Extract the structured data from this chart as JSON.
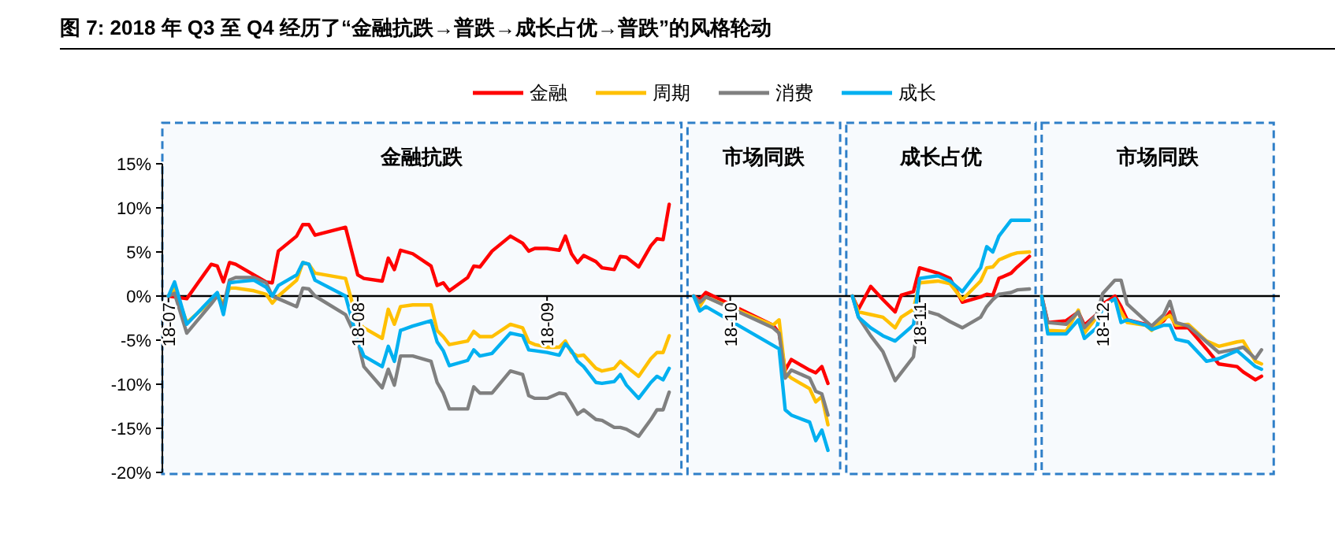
{
  "chart_data": {
    "type": "line",
    "title": "图 7:  2018 年 Q3 至 Q4 经历了“金融抗跌→普跌→成长占优→普跌”的风格轮动",
    "x": [
      "2018-07-01",
      "2018-07-02",
      "2018-07-04",
      "2018-07-08",
      "2018-07-09",
      "2018-07-10",
      "2018-07-11",
      "2018-07-12",
      "2018-07-15",
      "2018-07-17",
      "2018-07-18",
      "2018-07-19",
      "2018-07-22",
      "2018-07-23",
      "2018-07-24",
      "2018-07-25",
      "2018-07-30",
      "2018-08-01",
      "2018-08-02",
      "2018-08-05",
      "2018-08-06",
      "2018-08-07",
      "2018-08-08",
      "2018-08-10",
      "2018-08-13",
      "2018-08-14",
      "2018-08-15",
      "2018-08-16",
      "2018-08-19",
      "2018-08-20",
      "2018-08-21",
      "2018-08-23",
      "2018-08-26",
      "2018-08-28",
      "2018-08-29",
      "2018-08-30",
      "2018-09-01",
      "2018-09-03",
      "2018-09-04",
      "2018-09-05",
      "2018-09-06",
      "2018-09-07",
      "2018-09-09",
      "2018-09-10",
      "2018-09-12",
      "2018-09-13",
      "2018-09-14",
      "2018-09-16",
      "2018-09-18",
      "2018-09-19",
      "2018-09-20",
      "2018-09-21",
      "2018-09-25",
      "2018-09-26",
      "2018-09-27",
      "2018-10-08",
      "2018-10-09",
      "2018-10-10",
      "2018-10-11",
      "2018-10-14",
      "2018-10-15",
      "2018-10-16",
      "2018-10-17",
      "2018-10-21",
      "2018-10-22",
      "2018-10-24",
      "2018-10-26",
      "2018-10-28",
      "2018-10-29",
      "2018-10-31",
      "2018-11-01",
      "2018-11-04",
      "2018-11-06",
      "2018-11-08",
      "2018-11-11",
      "2018-11-12",
      "2018-11-13",
      "2018-11-14",
      "2018-11-16",
      "2018-11-17",
      "2018-11-19",
      "2018-11-21",
      "2018-11-22",
      "2018-11-25",
      "2018-11-27",
      "2018-11-28",
      "2018-11-30",
      "2018-12-01",
      "2018-12-03",
      "2018-12-04",
      "2018-12-05",
      "2018-12-08",
      "2018-12-09",
      "2018-12-11",
      "2018-12-12",
      "2018-12-13",
      "2018-12-15",
      "2018-12-18",
      "2018-12-20",
      "2018-12-23",
      "2018-12-24",
      "2018-12-26",
      "2018-12-27"
    ],
    "series": [
      {
        "name": "金融",
        "color": "#ff0000",
        "values": [
          0,
          -0.1,
          -0.3,
          3.6,
          3.4,
          1.6,
          3.8,
          3.6,
          2.4,
          1.6,
          1.5,
          5.1,
          6.8,
          8.1,
          8.1,
          6.9,
          7.8,
          2.4,
          2.0,
          1.7,
          4.3,
          3.0,
          5.2,
          4.8,
          3.4,
          1.2,
          1.5,
          0.6,
          2.1,
          3.4,
          3.3,
          5.1,
          6.8,
          6.0,
          5.1,
          5.4,
          5.4,
          5.2,
          6.8,
          4.8,
          3.8,
          4.6,
          3.9,
          3.2,
          3.0,
          4.5,
          4.4,
          3.3,
          5.7,
          6.5,
          6.4,
          10.4,
          0,
          -0.4,
          0.4,
          -3.3,
          -4.2,
          -8.4,
          -7.2,
          -8.4,
          -8.7,
          -8.0,
          -9.9,
          0,
          -1.5,
          1.1,
          -0.4,
          -1.8,
          0.1,
          0.5,
          3.2,
          2.6,
          2.0,
          -0.7,
          -0.1,
          0.2,
          0.1,
          2.0,
          2.6,
          3.3,
          4.5,
          0,
          -3.0,
          -2.8,
          -1.8,
          -3.3,
          -2.1,
          -0.9,
          0,
          -1.2,
          -2.7,
          -3.2,
          -3.6,
          -2.8,
          -1.8,
          -3.6,
          -3.6,
          -6.0,
          -7.7,
          -8.0,
          -8.6,
          -9.5,
          -9.1
        ]
      },
      {
        "name": "周期",
        "color": "#ffc000",
        "values": [
          0,
          0.9,
          -3.0,
          -0.6,
          0.3,
          -0.9,
          0.9,
          0.9,
          0.6,
          0.2,
          -0.8,
          0,
          1.8,
          3.8,
          3.6,
          2.6,
          2.0,
          -3.0,
          -3.6,
          -4.8,
          -1.5,
          -3.2,
          -1.2,
          -1.0,
          -1.0,
          -3.9,
          -4.6,
          -5.5,
          -5.1,
          -4.0,
          -4.6,
          -4.6,
          -3.2,
          -3.6,
          -5.2,
          -5.5,
          -5.8,
          -5.8,
          -5.1,
          -6.4,
          -6.8,
          -6.7,
          -8.2,
          -8.5,
          -8.2,
          -7.4,
          -8.0,
          -9.1,
          -7.1,
          -6.4,
          -6.4,
          -4.5,
          0,
          -1.2,
          -0.1,
          -3.3,
          -2.7,
          -8.7,
          -9.3,
          -10.5,
          -12.0,
          -11.4,
          -14.6,
          0,
          -1.8,
          -2.1,
          -2.4,
          -3.6,
          -2.4,
          -1.5,
          1.5,
          1.7,
          1.4,
          -0.4,
          1.7,
          3.2,
          3.3,
          4.1,
          4.7,
          4.9,
          5.0,
          0,
          -3.9,
          -4.0,
          -1.6,
          -4.2,
          -2.4,
          -1.2,
          -0.3,
          -1.8,
          -3.0,
          -3.3,
          -3.9,
          -2.6,
          -2.2,
          -3.3,
          -3.2,
          -5.1,
          -5.7,
          -5.2,
          -5.1,
          -7.4,
          -7.7
        ]
      },
      {
        "name": "消费",
        "color": "#808080",
        "values": [
          0,
          0.3,
          -4.2,
          -0.9,
          0,
          -1.2,
          1.8,
          2.1,
          2.1,
          1.5,
          0,
          -0.3,
          -1.2,
          0.9,
          0.8,
          0,
          -2.1,
          -5.1,
          -8.0,
          -10.4,
          -8.3,
          -10.1,
          -6.8,
          -6.8,
          -7.4,
          -9.8,
          -11.0,
          -12.8,
          -12.8,
          -10.3,
          -11.0,
          -11.0,
          -8.5,
          -8.9,
          -11.3,
          -11.6,
          -11.6,
          -11.0,
          -11.1,
          -12.2,
          -13.4,
          -12.9,
          -14.0,
          -14.1,
          -14.9,
          -14.9,
          -15.1,
          -15.9,
          -14.0,
          -12.9,
          -12.9,
          -10.9,
          0,
          -0.7,
          -0.1,
          -3.6,
          -4.2,
          -9.3,
          -8.4,
          -9.3,
          -10.8,
          -11.1,
          -13.5,
          0,
          -2.4,
          -4.5,
          -6.3,
          -9.6,
          -8.7,
          -6.9,
          -1.5,
          -2.1,
          -2.9,
          -3.6,
          -2.4,
          -1.2,
          -0.4,
          0.2,
          0.4,
          0.7,
          0.8,
          0,
          -3.0,
          -3.2,
          -1.8,
          -3.6,
          -2.1,
          0.3,
          1.8,
          1.8,
          -0.9,
          -2.8,
          -3.4,
          -2.1,
          -0.6,
          -3.0,
          -3.4,
          -5.2,
          -6.4,
          -6.0,
          -5.8,
          -7.1,
          -6.1
        ]
      },
      {
        "name": "成长",
        "color": "#00b0f0",
        "values": [
          0,
          1.6,
          -3.2,
          -0.3,
          0.4,
          -2.1,
          1.5,
          1.6,
          1.8,
          1.0,
          0,
          1.2,
          2.4,
          3.8,
          3.6,
          1.8,
          0,
          -5.1,
          -6.8,
          -8.0,
          -5.7,
          -7.4,
          -3.9,
          -3.4,
          -2.8,
          -5.2,
          -6.2,
          -7.9,
          -7.3,
          -6.1,
          -6.8,
          -6.5,
          -4.2,
          -4.5,
          -6.1,
          -6.2,
          -6.4,
          -6.7,
          -5.4,
          -6.2,
          -7.4,
          -8.0,
          -9.8,
          -9.9,
          -9.7,
          -8.9,
          -10.1,
          -11.6,
          -9.8,
          -9.1,
          -9.5,
          -8.2,
          0,
          -1.7,
          -1.2,
          -5.6,
          -6.0,
          -12.9,
          -13.5,
          -14.3,
          -16.4,
          -15.2,
          -17.5,
          0,
          -2.4,
          -3.6,
          -4.5,
          -5.1,
          -4.5,
          -3.3,
          2.0,
          2.3,
          1.7,
          0.5,
          3.2,
          5.6,
          5.0,
          6.8,
          8.6,
          8.6,
          8.6,
          0,
          -4.3,
          -4.3,
          -2.7,
          -4.8,
          -3.6,
          -1.2,
          -0.3,
          -3.0,
          -2.7,
          -3.3,
          -3.8,
          -3.3,
          -3.3,
          -4.9,
          -5.2,
          -7.4,
          -7.1,
          -6.2,
          -6.8,
          -8.0,
          -8.3
        ]
      }
    ],
    "xlim": [
      "2018-06-30",
      "2018-12-30"
    ],
    "xticks": [
      {
        "value": "2018-07-01",
        "label": "18-07"
      },
      {
        "value": "2018-08-01",
        "label": "18-08"
      },
      {
        "value": "2018-09-01",
        "label": "18-09"
      },
      {
        "value": "2018-10-01",
        "label": "18-10"
      },
      {
        "value": "2018-11-01",
        "label": "18-11"
      },
      {
        "value": "2018-12-01",
        "label": "18-12"
      }
    ],
    "ylim": [
      -20,
      15
    ],
    "yticks": [
      {
        "value": -20,
        "label": "-20%"
      },
      {
        "value": -15,
        "label": "-15%"
      },
      {
        "value": -10,
        "label": "-10%"
      },
      {
        "value": -5,
        "label": "-5%"
      },
      {
        "value": 0,
        "label": "0%"
      },
      {
        "value": 5,
        "label": "5%"
      },
      {
        "value": 10,
        "label": "10%"
      },
      {
        "value": 15,
        "label": "15%"
      }
    ],
    "bands": [
      {
        "axis": "x",
        "from": "2018-06-30",
        "to": "2018-09-23",
        "label": "金融抗跌",
        "color": "#2f7fc8"
      },
      {
        "axis": "x",
        "from": "2018-09-24",
        "to": "2018-10-19",
        "label": "市场同跌",
        "color": "#2f7fc8"
      },
      {
        "axis": "x",
        "from": "2018-10-20",
        "to": "2018-11-20",
        "label": "成长占优",
        "color": "#2f7fc8"
      },
      {
        "axis": "x",
        "from": "2018-11-21",
        "to": "2018-12-29",
        "label": "市场同跌",
        "color": "#2f7fc8"
      }
    ],
    "legend": "top",
    "grid": false,
    "marker": "none",
    "line_style": "solid"
  }
}
